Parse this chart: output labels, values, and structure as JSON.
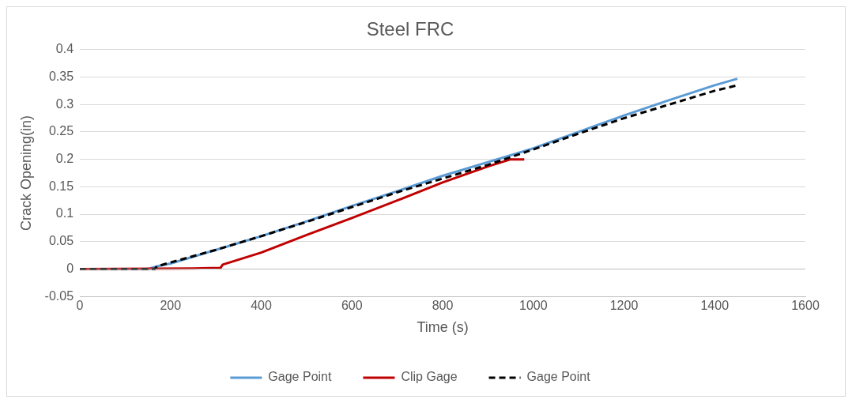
{
  "chart_data": {
    "type": "line",
    "title": "Steel FRC",
    "xlabel": "Time (s)",
    "ylabel": "Crack Opening(in)",
    "xlim": [
      0,
      1600
    ],
    "xticks": [
      0,
      200,
      400,
      600,
      800,
      1000,
      1200,
      1400,
      1600
    ],
    "ylim": [
      -0.05,
      0.4
    ],
    "yticks": [
      -0.05,
      0,
      0.05,
      0.1,
      0.15,
      0.2,
      0.25,
      0.3,
      0.35,
      0.4
    ],
    "grid": "y",
    "legend": "bottom",
    "marker": "none",
    "series": [
      {
        "name": "Gage Point",
        "color": "#5b9bd5",
        "line_style": "solid",
        "x": [
          0,
          150,
          170,
          200,
          300,
          400,
          500,
          600,
          700,
          800,
          900,
          1000,
          1100,
          1200,
          1300,
          1400,
          1450
        ],
        "values": [
          0,
          0,
          0.005,
          0.01,
          0.035,
          0.06,
          0.087,
          0.115,
          0.142,
          0.17,
          0.195,
          0.22,
          0.25,
          0.28,
          0.308,
          0.335,
          0.347
        ]
      },
      {
        "name": "Clip Gage",
        "color": "#c00000",
        "line_style": "solid",
        "x": [
          0,
          250,
          310,
          315,
          400,
          500,
          600,
          700,
          800,
          900,
          950,
          980
        ],
        "values": [
          0,
          0.001,
          0.002,
          0.008,
          0.03,
          0.062,
          0.093,
          0.125,
          0.158,
          0.187,
          0.2,
          0.2
        ]
      },
      {
        "name": "Gage Point",
        "color": "#000000",
        "line_style": "dashed",
        "x": [
          0,
          165,
          170,
          200,
          300,
          400,
          500,
          600,
          700,
          800,
          900,
          1000,
          1100,
          1200,
          1300,
          1400,
          1450
        ],
        "values": [
          0,
          0,
          0.005,
          0.012,
          0.035,
          0.06,
          0.086,
          0.113,
          0.14,
          0.165,
          0.19,
          0.218,
          0.247,
          0.275,
          0.3,
          0.325,
          0.335
        ]
      }
    ]
  }
}
